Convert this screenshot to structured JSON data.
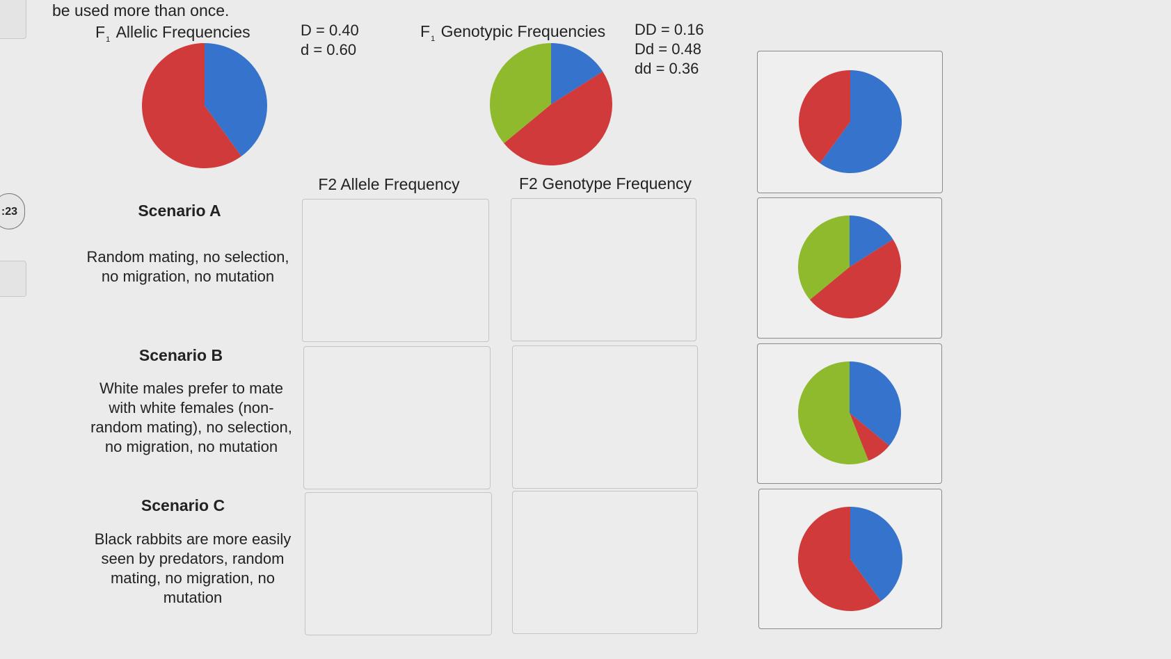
{
  "instructions_tail": "be used more than once.",
  "f1_allelic": {
    "title_prefix": "F",
    "title_sub": "1",
    "title_rest": "Allelic Frequencies",
    "values": [
      "D = 0.40",
      "d = 0.60"
    ],
    "slices": [
      {
        "label": "D",
        "value": 0.4,
        "color": "#3573cc"
      },
      {
        "label": "d",
        "value": 0.6,
        "color": "#d13a3a"
      }
    ]
  },
  "f1_genotypic": {
    "title_prefix": "F",
    "title_sub": "1",
    "title_rest": "Genotypic Frequencies",
    "values": [
      "DD = 0.16",
      "Dd = 0.48",
      "dd = 0.36"
    ],
    "slices": [
      {
        "label": "DD",
        "value": 0.16,
        "color": "#3573cc"
      },
      {
        "label": "Dd",
        "value": 0.48,
        "color": "#d13a3a"
      },
      {
        "label": "dd",
        "value": 0.36,
        "color": "#8fba2e"
      }
    ]
  },
  "columns": {
    "allele": "F2 Allele Frequency",
    "genotype": "F2 Genotype Frequency"
  },
  "scenarios": [
    {
      "title": "Scenario A",
      "lines": [
        "Random mating, no selection,",
        "no migration, no mutation"
      ]
    },
    {
      "title": "Scenario B",
      "lines": [
        "White males prefer to mate",
        "with white females (non-",
        "random mating), no selection,",
        "no migration, no mutation"
      ]
    },
    {
      "title": "Scenario C",
      "lines": [
        "Black rabbits are more easily",
        "seen by predators, random",
        "mating, no migration, no",
        "mutation"
      ]
    }
  ],
  "timer_text": ":23",
  "answer_tiles": [
    {
      "slices": [
        {
          "value": 0.6,
          "color": "#3573cc"
        },
        {
          "value": 0.4,
          "color": "#d13a3a"
        }
      ]
    },
    {
      "slices": [
        {
          "value": 0.16,
          "color": "#3573cc"
        },
        {
          "value": 0.48,
          "color": "#d13a3a"
        },
        {
          "value": 0.36,
          "color": "#8fba2e"
        }
      ]
    },
    {
      "slices": [
        {
          "value": 0.36,
          "color": "#3573cc"
        },
        {
          "value": 0.08,
          "color": "#d13a3a"
        },
        {
          "value": 0.56,
          "color": "#8fba2e"
        }
      ]
    },
    {
      "slices": [
        {
          "value": 0.4,
          "color": "#3573cc"
        },
        {
          "value": 0.6,
          "color": "#d13a3a"
        }
      ]
    }
  ]
}
